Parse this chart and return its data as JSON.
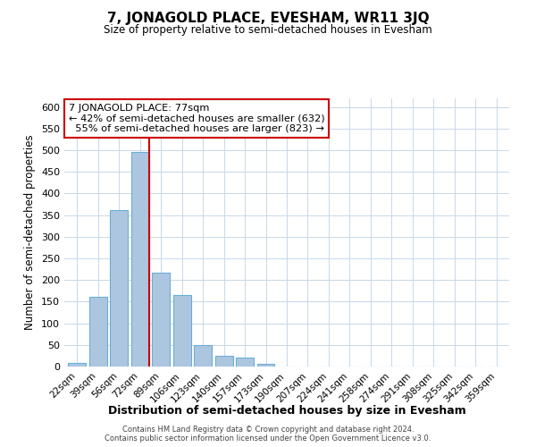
{
  "title": "7, JONAGOLD PLACE, EVESHAM, WR11 3JQ",
  "subtitle": "Size of property relative to semi-detached houses in Evesham",
  "xlabel": "Distribution of semi-detached houses by size in Evesham",
  "ylabel": "Number of semi-detached properties",
  "bar_labels": [
    "22sqm",
    "39sqm",
    "56sqm",
    "72sqm",
    "89sqm",
    "106sqm",
    "123sqm",
    "140sqm",
    "157sqm",
    "173sqm",
    "190sqm",
    "207sqm",
    "224sqm",
    "241sqm",
    "258sqm",
    "274sqm",
    "291sqm",
    "308sqm",
    "325sqm",
    "342sqm",
    "359sqm"
  ],
  "bar_values": [
    8,
    162,
    362,
    495,
    218,
    165,
    50,
    25,
    20,
    7,
    1,
    1,
    0,
    0,
    0,
    1,
    0,
    0,
    0,
    0,
    1
  ],
  "bar_color": "#adc6e0",
  "bar_edge_color": "#6aaed6",
  "highlight_bar_index": 3,
  "highlight_line_color": "#cc0000",
  "property_label": "7 JONAGOLD PLACE: 77sqm",
  "smaller_pct": "42%",
  "smaller_count": 632,
  "larger_pct": "55%",
  "larger_count": 823,
  "annotation_box_edge_color": "#cc0000",
  "ylim": [
    0,
    620
  ],
  "yticks": [
    0,
    50,
    100,
    150,
    200,
    250,
    300,
    350,
    400,
    450,
    500,
    550,
    600
  ],
  "footer_line1": "Contains HM Land Registry data © Crown copyright and database right 2024.",
  "footer_line2": "Contains public sector information licensed under the Open Government Licence v3.0.",
  "background_color": "#ffffff",
  "grid_color": "#c8d8e8"
}
